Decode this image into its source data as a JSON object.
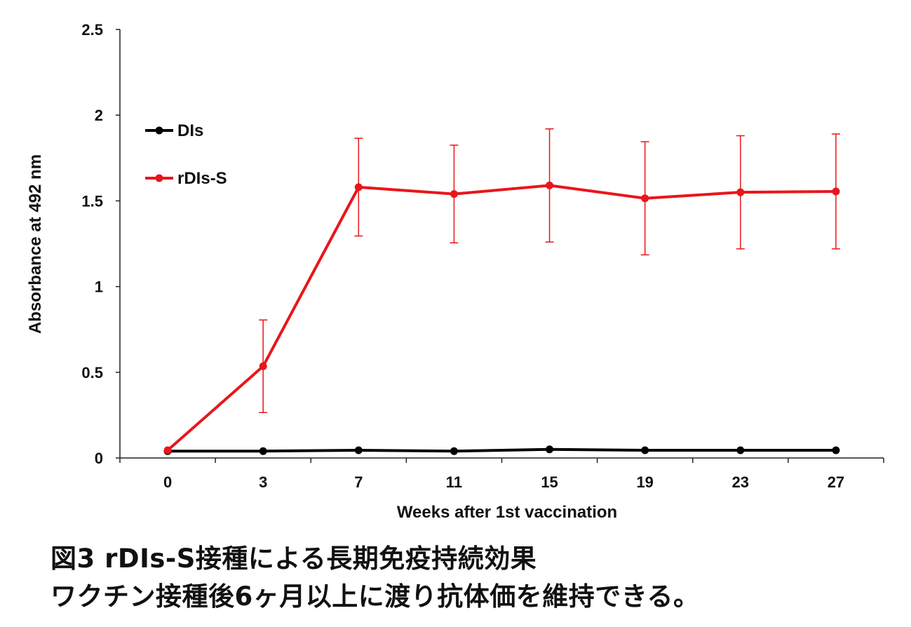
{
  "chart_data": {
    "type": "line",
    "xlabel": "Weeks after 1st vaccination",
    "ylabel": "Absorbance at 492 nm",
    "categories": [
      "0",
      "3",
      "7",
      "11",
      "15",
      "19",
      "23",
      "27"
    ],
    "ylim": [
      0,
      2.5
    ],
    "yticks": [
      "0",
      "0.5",
      "1",
      "1.5",
      "2",
      "2.5"
    ],
    "grid": false,
    "legend_position": "top-left",
    "series": [
      {
        "name": "DIs",
        "color": "#000000",
        "values": [
          0.04,
          0.04,
          0.045,
          0.04,
          0.05,
          0.045,
          0.045,
          0.045
        ],
        "errors": null
      },
      {
        "name": "rDIs-S",
        "color": "#e8161b",
        "values": [
          0.045,
          0.535,
          1.58,
          1.54,
          1.59,
          1.515,
          1.55,
          1.555
        ],
        "errors": [
          0,
          0.27,
          0.285,
          0.285,
          0.33,
          0.33,
          0.33,
          0.335
        ]
      }
    ]
  },
  "caption": {
    "line1": "図3 rDIs-S接種による長期免疫持続効果",
    "line2": "ワクチン接種後6ヶ月以上に渡り抗体価を維持できる。"
  }
}
